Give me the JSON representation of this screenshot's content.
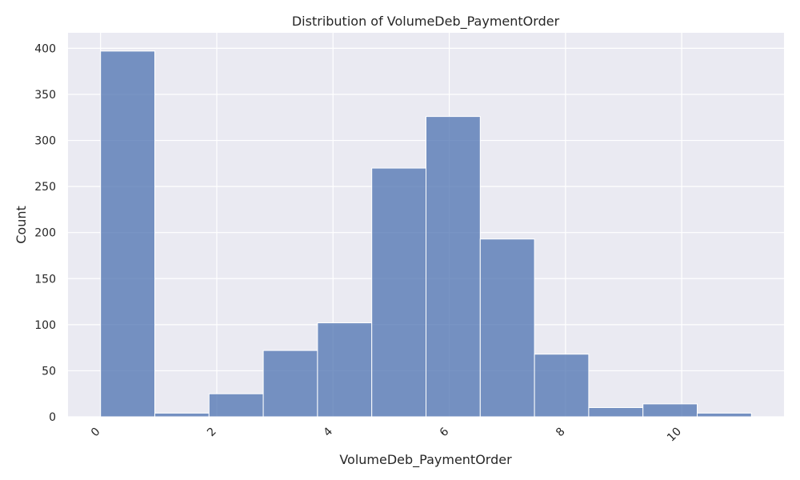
{
  "chart_data": {
    "type": "bar",
    "title": "Distribution of VolumeDeb_PaymentOrder",
    "xlabel": "VolumeDeb_PaymentOrder",
    "ylabel": "Count",
    "bin_edges": [
      0,
      0.9333,
      1.8667,
      2.8,
      3.7333,
      4.6667,
      5.6,
      6.5333,
      7.4667,
      8.4,
      9.3333,
      10.2667,
      11.2
    ],
    "values": [
      397,
      4,
      25,
      72,
      102,
      270,
      326,
      193,
      68,
      10,
      14,
      4
    ],
    "xlim": [
      -0.56,
      11.76
    ],
    "ylim": [
      0,
      416.85
    ],
    "x_ticks": [
      0,
      2,
      4,
      6,
      8,
      10
    ],
    "x_tick_labels": [
      "0",
      "2",
      "4",
      "6",
      "8",
      "10"
    ],
    "y_ticks": [
      0,
      50,
      100,
      150,
      200,
      250,
      300,
      350,
      400
    ],
    "y_tick_labels": [
      "0",
      "50",
      "100",
      "150",
      "200",
      "250",
      "300",
      "350",
      "400"
    ],
    "grid": true,
    "colors": {
      "bar_fill": "#4c72b0",
      "bar_stroke": "#ffffff",
      "plot_background": "#eaeaf2",
      "grid": "#ffffff",
      "text": "#262626"
    }
  }
}
